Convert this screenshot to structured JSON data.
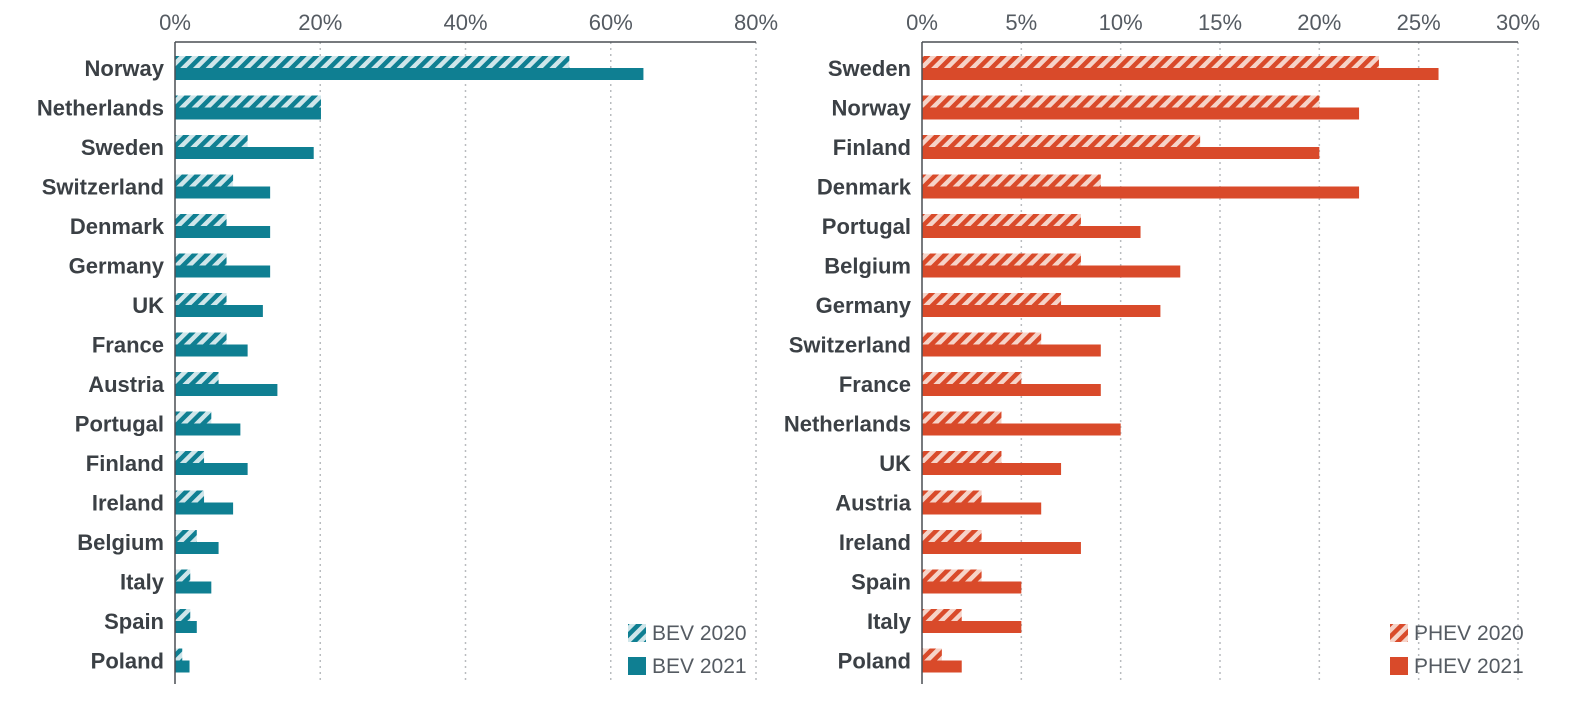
{
  "colors": {
    "bev": "#0f7f92",
    "bev_hatch_bg": "#cfe6ea",
    "phev": "#d94a2a",
    "phev_hatch_bg": "#f6d3c8",
    "text": "#3b4045",
    "tick_text": "#555b62"
  },
  "chart_data": [
    {
      "type": "bar",
      "orientation": "horizontal",
      "title": "",
      "xlabel": "",
      "ylabel": "",
      "xlim": [
        0,
        80
      ],
      "x_ticks": [
        0,
        20,
        40,
        60,
        80
      ],
      "x_tick_labels": [
        "0%",
        "20%",
        "40%",
        "60%",
        "80%"
      ],
      "grid": "vertical dotted",
      "legend_position": "bottom-right",
      "categories": [
        "Norway",
        "Netherlands",
        "Sweden",
        "Switzerland",
        "Denmark",
        "Germany",
        "UK",
        "France",
        "Austria",
        "Portugal",
        "Finland",
        "Ireland",
        "Belgium",
        "Italy",
        "Spain",
        "Poland"
      ],
      "series": [
        {
          "name": "BEV 2020",
          "pattern": "hatched",
          "values": [
            54.3,
            20.1,
            10.0,
            8.0,
            7.1,
            7.1,
            7.1,
            7.1,
            6.0,
            5.0,
            4.0,
            4.0,
            3.0,
            2.1,
            2.1,
            1.0
          ]
        },
        {
          "name": "BEV 2021",
          "pattern": "solid",
          "values": [
            64.5,
            20.1,
            19.1,
            13.1,
            13.1,
            13.1,
            12.1,
            10.0,
            14.1,
            9.0,
            10.0,
            8.0,
            6.0,
            5.0,
            3.0,
            2.0
          ]
        }
      ]
    },
    {
      "type": "bar",
      "orientation": "horizontal",
      "title": "",
      "xlabel": "",
      "ylabel": "",
      "xlim": [
        0,
        30
      ],
      "x_ticks": [
        0,
        5,
        10,
        15,
        20,
        25,
        30
      ],
      "x_tick_labels": [
        "0%",
        "5%",
        "10%",
        "15%",
        "20%",
        "25%",
        "30%"
      ],
      "grid": "vertical dotted",
      "legend_position": "bottom-right",
      "categories": [
        "Sweden",
        "Norway",
        "Finland",
        "Denmark",
        "Portugal",
        "Belgium",
        "Germany",
        "Switzerland",
        "France",
        "Netherlands",
        "UK",
        "Austria",
        "Ireland",
        "Spain",
        "Italy",
        "Poland"
      ],
      "series": [
        {
          "name": "PHEV 2020",
          "pattern": "hatched",
          "values": [
            23.0,
            20.0,
            14.0,
            9.0,
            8.0,
            8.0,
            7.0,
            6.0,
            5.0,
            4.0,
            4.0,
            3.0,
            3.0,
            3.0,
            2.0,
            1.0
          ]
        },
        {
          "name": "PHEV 2021",
          "pattern": "solid",
          "values": [
            26.0,
            22.0,
            20.0,
            22.0,
            11.0,
            13.0,
            12.0,
            9.0,
            9.0,
            10.0,
            7.0,
            6.0,
            8.0,
            5.0,
            5.0,
            2.0
          ]
        }
      ]
    }
  ]
}
